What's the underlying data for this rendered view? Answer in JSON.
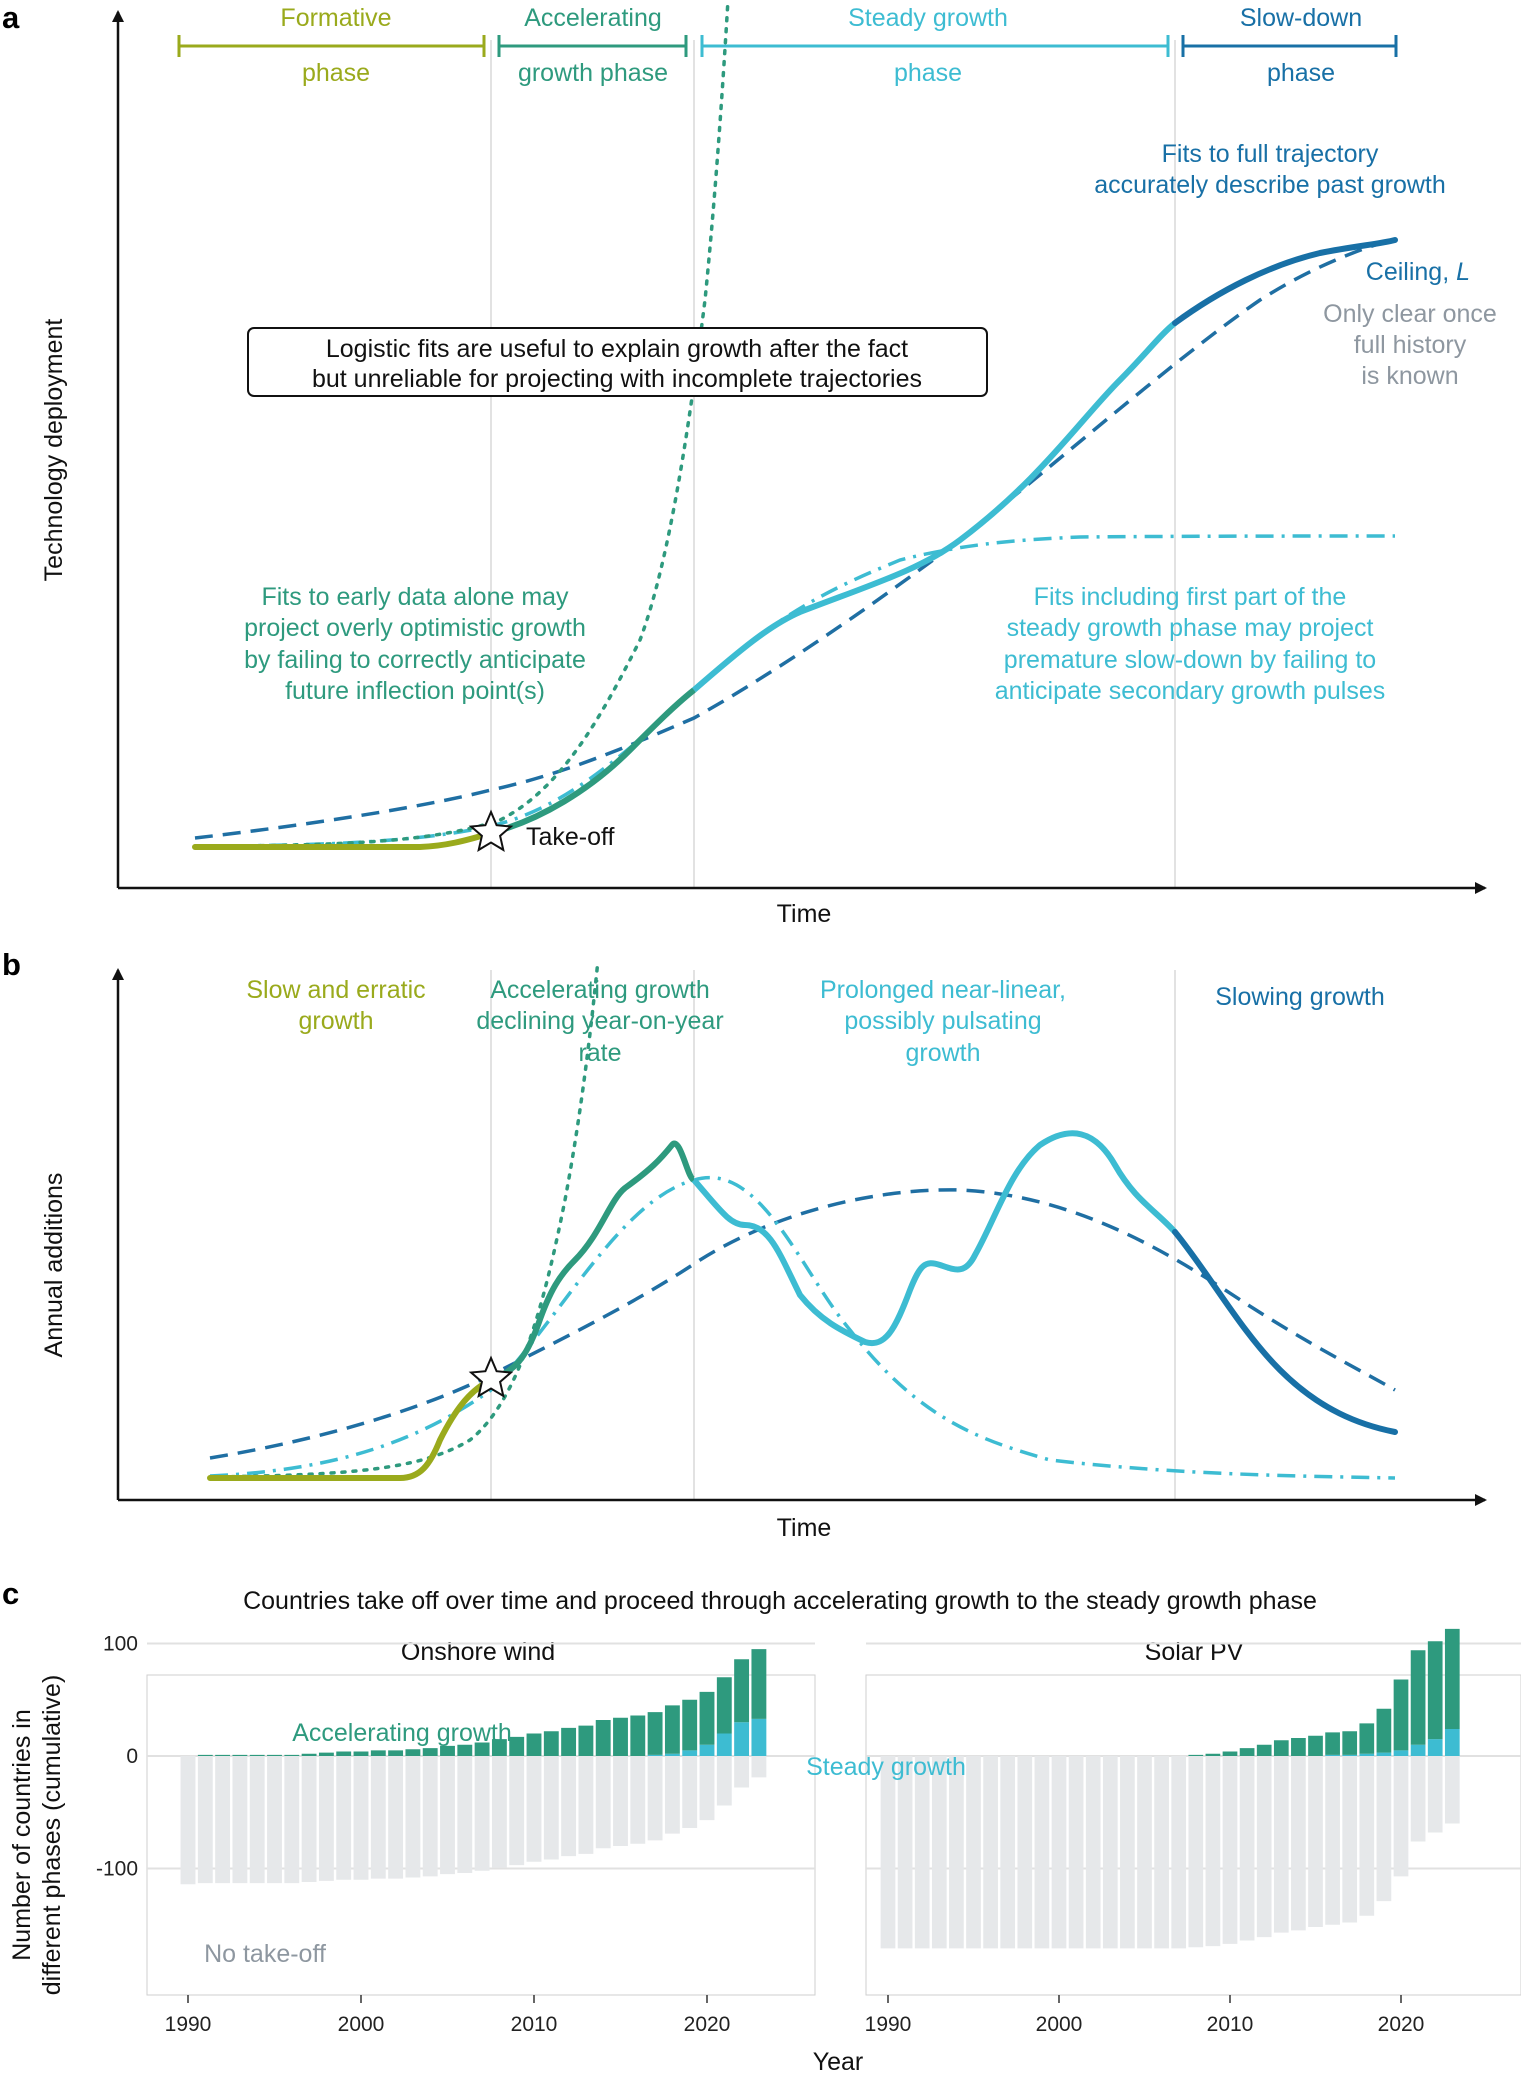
{
  "colors": {
    "formative": "#9aaa1c",
    "accelerating": "#2e9a7e",
    "steady": "#3dbcd2",
    "slowdown": "#1870a6",
    "dashed_fit": "#1f6fa3",
    "no_takeoff": "#e6e8ea",
    "grid": "#e1e1e1",
    "note_gray": "#8e97a0"
  },
  "panel_a": {
    "letter": "a",
    "phases": [
      {
        "line1": "Formative",
        "line2": "phase"
      },
      {
        "line1": "Accelerating",
        "line2": "growth phase"
      },
      {
        "line1": "Steady growth",
        "line2": "phase"
      },
      {
        "line1": "Slow-down",
        "line2": "phase"
      }
    ],
    "ylabel": "Technology deployment",
    "xlabel": "Time",
    "box_line1": "Logistic fits are useful to explain growth after the fact",
    "box_line2": "but unreliable for projecting with incomplete trajectories",
    "full_fit_line1": "Fits to full trajectory",
    "full_fit_line2": "accurately describe past growth",
    "ceiling": "Ceiling, ",
    "ceiling_var": "L",
    "ceiling_note": [
      "Only clear once",
      "full history",
      "is known"
    ],
    "early_fit_note": [
      "Fits to early data alone may",
      "project overly optimistic growth",
      "by failing to correctly anticipate",
      "future inflection point(s)"
    ],
    "steady_fit_note": [
      "Fits including first part of the",
      "steady growth phase may project",
      "premature slow-down by failing to",
      "anticipate secondary growth pulses"
    ],
    "takeoff": "Take-off"
  },
  "panel_b": {
    "letter": "b",
    "ylabel": "Annual additions",
    "xlabel": "Time",
    "formative_note": [
      "Slow and erratic",
      "growth"
    ],
    "accel_note": [
      "Accelerating growth",
      "declining year-on-year",
      "rate"
    ],
    "steady_note": [
      "Prolonged near-linear,",
      "possibly pulsating",
      "growth"
    ],
    "slow_note": "Slowing growth"
  },
  "panel_c": {
    "letter": "c",
    "title": "Countries take off over time and proceed through accelerating growth to the steady growth phase",
    "ylabel_line1": "Number of countries in",
    "ylabel_line2": "different phases (cumulative)",
    "xlabel": "Year",
    "label_accelerating": "Accelerating growth",
    "label_steady": "Steady growth",
    "label_no_takeoff": "No take-off"
  },
  "chart_data": [
    {
      "type": "line",
      "panel": "a",
      "title": "",
      "xlabel": "Time",
      "ylabel": "Technology deployment",
      "note": "Conceptual curve; axes have no numeric scale. x and y in arbitrary units (x 0-1, y 0-1).",
      "series": [
        {
          "name": "Observed trajectory",
          "x": [
            0.0,
            0.2,
            0.25,
            0.28,
            0.33,
            0.37,
            0.41,
            0.45,
            0.52,
            0.56,
            0.63,
            0.7,
            0.75,
            0.82,
            0.87,
            0.9,
            0.95,
            1.0
          ],
          "y": [
            0.015,
            0.015,
            0.02,
            0.03,
            0.05,
            0.09,
            0.14,
            0.21,
            0.33,
            0.37,
            0.43,
            0.5,
            0.59,
            0.72,
            0.78,
            0.81,
            0.84,
            0.86
          ]
        },
        {
          "name": "Fit to full trajectory",
          "x": [
            0.0,
            0.2,
            0.3,
            0.4,
            0.5,
            0.6,
            0.7,
            0.8,
            0.9,
            1.0
          ],
          "y": [
            0.03,
            0.06,
            0.09,
            0.16,
            0.27,
            0.43,
            0.58,
            0.71,
            0.8,
            0.86
          ]
        },
        {
          "name": "Fit including first part of steady growth",
          "x": [
            0.0,
            0.2,
            0.3,
            0.4,
            0.5,
            0.6,
            0.7,
            0.8,
            0.9,
            1.0
          ],
          "y": [
            0.01,
            0.02,
            0.06,
            0.2,
            0.39,
            0.49,
            0.52,
            0.53,
            0.53,
            0.53
          ]
        },
        {
          "name": "Fit to early data alone",
          "x": [
            0.0,
            0.2,
            0.3,
            0.35,
            0.4,
            0.45
          ],
          "y": [
            0.01,
            0.02,
            0.08,
            0.24,
            0.6,
            1.0
          ]
        }
      ],
      "phases": [
        "Formative phase",
        "Accelerating growth phase",
        "Steady growth phase",
        "Slow-down phase"
      ]
    },
    {
      "type": "line",
      "panel": "b",
      "xlabel": "Time",
      "ylabel": "Annual additions",
      "note": "Conceptual curve; axes have no numeric scale. x and y in arbitrary units (x 0-1, y 0-1).",
      "series": [
        {
          "name": "Observed annual additions",
          "x": [
            0.0,
            0.17,
            0.23,
            0.27,
            0.31,
            0.35,
            0.38,
            0.4,
            0.43,
            0.46,
            0.5,
            0.52,
            0.55,
            0.58,
            0.6,
            0.63,
            0.68,
            0.72,
            0.76,
            0.82,
            0.9,
            1.0
          ],
          "y": [
            0.0,
            0.0,
            0.23,
            0.37,
            0.57,
            0.69,
            0.73,
            0.6,
            0.57,
            0.43,
            0.36,
            0.39,
            0.55,
            0.54,
            0.65,
            0.83,
            0.95,
            0.88,
            0.6,
            0.37,
            0.17,
            0.1
          ]
        },
        {
          "name": "Fit to full trajectory",
          "x": [
            0.0,
            0.2,
            0.4,
            0.6,
            0.65,
            0.8,
            1.0
          ],
          "y": [
            0.05,
            0.2,
            0.42,
            0.7,
            0.73,
            0.56,
            0.27
          ]
        },
        {
          "name": "Fit including first part of steady growth",
          "x": [
            0.0,
            0.2,
            0.3,
            0.4,
            0.45,
            0.55,
            0.7,
            0.85,
            1.0
          ],
          "y": [
            0.0,
            0.07,
            0.47,
            0.71,
            0.56,
            0.21,
            0.04,
            0.01,
            0.0
          ]
        },
        {
          "name": "Fit to early data alone",
          "x": [
            0.0,
            0.15,
            0.25,
            0.3,
            0.33
          ],
          "y": [
            0.0,
            0.03,
            0.17,
            0.5,
            1.0
          ]
        }
      ]
    },
    {
      "type": "bar",
      "panel": "c-left",
      "title": "Onshore wind",
      "xlabel": "Year",
      "ylabel": "Number of countries in different phases (cumulative)",
      "ylim": [
        -170,
        120
      ],
      "yticks": [
        100,
        0,
        -100
      ],
      "xticks": [
        1990,
        2000,
        2010,
        2020
      ],
      "categories": [
        1990,
        1991,
        1992,
        1993,
        1994,
        1995,
        1996,
        1997,
        1998,
        1999,
        2000,
        2001,
        2002,
        2003,
        2004,
        2005,
        2006,
        2007,
        2008,
        2009,
        2010,
        2011,
        2012,
        2013,
        2014,
        2015,
        2016,
        2017,
        2018,
        2019,
        2020,
        2021,
        2022,
        2023
      ],
      "series": [
        {
          "name": "Steady growth",
          "values": [
            0,
            0,
            0,
            0,
            0,
            0,
            0,
            0,
            0,
            0,
            0,
            0,
            0,
            0,
            0,
            0,
            0,
            0,
            0,
            0,
            0,
            0,
            0,
            0,
            0,
            0,
            0,
            1,
            2,
            5,
            10,
            20,
            30,
            33
          ]
        },
        {
          "name": "Accelerating growth",
          "values": [
            0,
            1,
            1,
            1,
            1,
            1,
            1,
            2,
            3,
            4,
            4,
            5,
            5,
            6,
            7,
            9,
            10,
            12,
            15,
            17,
            20,
            22,
            25,
            27,
            32,
            34,
            36,
            38,
            43,
            45,
            47,
            50,
            56,
            62
          ]
        },
        {
          "name": "No take-off",
          "values": [
            -114,
            -113,
            -113,
            -113,
            -113,
            -113,
            -113,
            -112,
            -111,
            -110,
            -110,
            -109,
            -109,
            -108,
            -107,
            -105,
            -104,
            -102,
            -99,
            -97,
            -94,
            -92,
            -89,
            -87,
            -82,
            -80,
            -78,
            -75,
            -69,
            -64,
            -57,
            -44,
            -28,
            -19
          ]
        }
      ],
      "series_labels": [
        "Accelerating growth",
        "Steady growth",
        "No take-off"
      ]
    },
    {
      "type": "bar",
      "panel": "c-right",
      "title": "Solar PV",
      "xlabel": "Year",
      "ylim": [
        -170,
        120
      ],
      "yticks": [
        100,
        0,
        -100
      ],
      "xticks": [
        1990,
        2000,
        2010,
        2020
      ],
      "categories": [
        1990,
        1991,
        1992,
        1993,
        1994,
        1995,
        1996,
        1997,
        1998,
        1999,
        2000,
        2001,
        2002,
        2003,
        2004,
        2005,
        2006,
        2007,
        2008,
        2009,
        2010,
        2011,
        2012,
        2013,
        2014,
        2015,
        2016,
        2017,
        2018,
        2019,
        2020,
        2021,
        2022,
        2023
      ],
      "series": [
        {
          "name": "Steady growth",
          "values": [
            0,
            0,
            0,
            0,
            0,
            0,
            0,
            0,
            0,
            0,
            0,
            0,
            0,
            0,
            0,
            0,
            0,
            0,
            0,
            0,
            0,
            0,
            0,
            0,
            0,
            0,
            1,
            1,
            2,
            3,
            5,
            10,
            15,
            24
          ]
        },
        {
          "name": "Accelerating growth",
          "values": [
            0,
            0,
            0,
            0,
            0,
            0,
            0,
            0,
            0,
            0,
            0,
            0,
            0,
            0,
            0,
            0,
            0,
            0,
            1,
            2,
            4,
            7,
            10,
            14,
            16,
            18,
            20,
            21,
            27,
            39,
            63,
            84,
            87,
            89
          ]
        },
        {
          "name": "No take-off",
          "values": [
            -171,
            -171,
            -171,
            -171,
            -171,
            -171,
            -171,
            -171,
            -171,
            -171,
            -171,
            -171,
            -171,
            -171,
            -171,
            -171,
            -171,
            -171,
            -170,
            -169,
            -167,
            -164,
            -161,
            -157,
            -155,
            -152,
            -150,
            -148,
            -142,
            -129,
            -107,
            -76,
            -68,
            -60
          ]
        }
      ]
    }
  ]
}
